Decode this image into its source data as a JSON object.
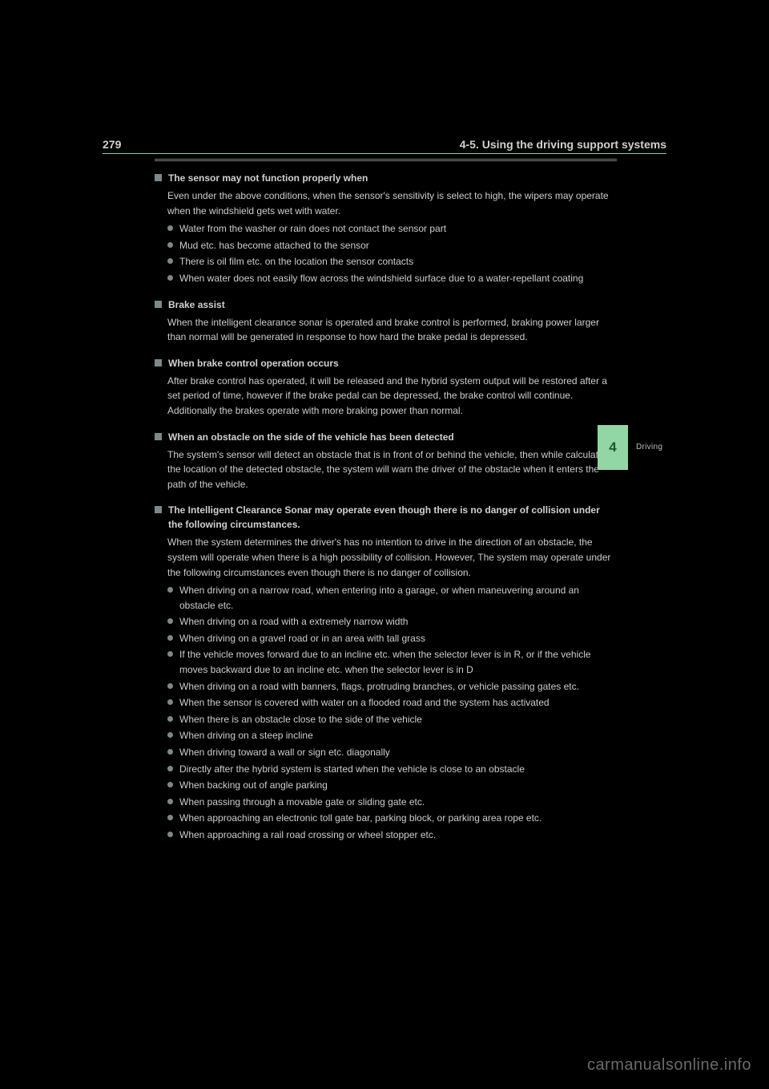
{
  "colors": {
    "page_bg": "#000000",
    "text": "#cccccc",
    "text_strong": "#d0d0d0",
    "accent_rule": "#86d6a0",
    "tab_bg": "#93d6a5",
    "tab_fg": "#225533",
    "marker": "#7a8a8a",
    "watermark": "#6a6a6a"
  },
  "header": {
    "page_number": "279",
    "section": "4-5. Using the driving support systems"
  },
  "side": {
    "chapter": "4",
    "label": "Driving"
  },
  "watermark": "carmanualsonline.info",
  "blocks": [
    {
      "type": "rule"
    },
    {
      "type": "square",
      "text": "The sensor may not function properly when"
    },
    {
      "type": "para",
      "text": "Even under the above conditions, when the sensor's sensitivity is select to high, the wipers may operate when the windshield gets wet with water."
    },
    {
      "type": "bullet",
      "text": "Water from the washer or rain does not contact the sensor part"
    },
    {
      "type": "bullet",
      "text": "Mud etc. has become attached to the sensor"
    },
    {
      "type": "bullet",
      "text": "There is oil film etc. on the location the sensor contacts"
    },
    {
      "type": "bullet",
      "text": "When water does not easily flow across the windshield surface due to a water-repellant coating"
    },
    {
      "type": "square",
      "class": "mt",
      "text": "Brake assist"
    },
    {
      "type": "para",
      "text": "When the intelligent clearance sonar is operated and brake control is performed, braking power larger than normal will be generated in response to how hard the brake pedal is depressed."
    },
    {
      "type": "square",
      "class": "mt",
      "text": "When brake control operation occurs"
    },
    {
      "type": "para",
      "text": "After brake control has operated, it will be released and the hybrid system output will be restored after a set period of time, however if the brake pedal can be depressed, the brake control will continue. Additionally the brakes operate with more braking power than normal."
    },
    {
      "type": "square",
      "class": "mt",
      "text": "When an obstacle on the side of the vehicle has been detected"
    },
    {
      "type": "para",
      "text": "The system's sensor will detect an obstacle that is in front of or behind the vehicle, then while calculating the location of the detected obstacle, the system will warn the driver of the obstacle when it enters the path of the vehicle."
    },
    {
      "type": "square",
      "class": "mt",
      "text": "The Intelligent Clearance Sonar may operate even though there is no danger of collision under the following circumstances."
    },
    {
      "type": "para",
      "text": "When the system determines the driver's has no intention to drive in the direction of an obstacle, the system will operate when there is a high possibility of collision. However, The system may operate under the following circumstances even though there is no danger of collision."
    },
    {
      "type": "bullet",
      "text": "When driving on a narrow road, when entering into a garage, or when maneuvering around an obstacle etc."
    },
    {
      "type": "bullet",
      "text": "When driving on a road with a extremely narrow width"
    },
    {
      "type": "bullet",
      "text": "When driving on a gravel road or in an area with tall grass"
    },
    {
      "type": "bullet",
      "text": "If the vehicle moves forward due to an incline etc. when the selector lever is in R, or if the vehicle moves backward due to an incline etc. when the selector lever is in D"
    },
    {
      "type": "bullet",
      "text": "When driving on a road with banners, flags, protruding branches, or vehicle passing gates etc."
    },
    {
      "type": "bullet",
      "text": "When the sensor is covered with water on a flooded road and the system has activated"
    },
    {
      "type": "bullet",
      "text": "When there is an obstacle close to the side of the vehicle"
    },
    {
      "type": "bullet",
      "text": "When driving on a steep incline"
    },
    {
      "type": "bullet",
      "text": "When driving toward a wall or sign etc. diagonally"
    },
    {
      "type": "bullet",
      "text": "Directly after the hybrid system is started when the vehicle is close to an obstacle"
    },
    {
      "type": "bullet",
      "text": "When backing out of angle parking"
    },
    {
      "type": "bullet",
      "text": "When passing through a movable gate or sliding gate etc."
    },
    {
      "type": "bullet",
      "text": "When approaching an electronic toll gate bar, parking block, or parking area rope etc."
    },
    {
      "type": "bullet",
      "text": "When approaching a rail road crossing or wheel stopper etc."
    }
  ]
}
